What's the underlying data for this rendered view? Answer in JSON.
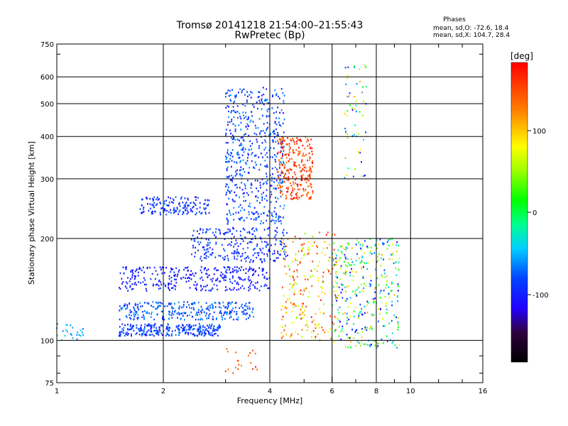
{
  "header": {
    "title": "Tromsø 20141218 21:54:00–21:55:43",
    "subtitle": "RwPretec (Bp)"
  },
  "phases_box": {
    "heading": "Phases",
    "line_o": "mean, sd,O: -72.6, 18.4",
    "line_x": "mean, sd,X: 104.7, 28.4"
  },
  "colorbar": {
    "unit": "[deg]",
    "ticks": [
      "100",
      "0",
      "-100"
    ]
  },
  "chart_data": {
    "type": "scatter",
    "xlabel": "Frequency [MHz]",
    "ylabel": "Stationary phase Virtual Height [km]",
    "xscale": "log",
    "yscale": "log",
    "xlim": [
      1,
      16
    ],
    "ylim": [
      75,
      750
    ],
    "xticks": [
      1,
      2,
      4,
      6,
      8,
      10,
      16
    ],
    "xtick_labels": [
      "1",
      "2",
      "4",
      "6",
      "8",
      "10",
      "16"
    ],
    "yticks": [
      75,
      100,
      200,
      300,
      400,
      500,
      600,
      750
    ],
    "ytick_labels": [
      "75",
      "100",
      "200",
      "300",
      "400",
      "500",
      "600",
      "750"
    ],
    "grid": true,
    "colormap": "rainbow",
    "color_range_deg": [
      -180,
      180
    ],
    "clusters": [
      {
        "f": [
          1.5,
          2.9
        ],
        "h": [
          103,
          112
        ],
        "phase": [
          -110,
          -60
        ],
        "n": 280
      },
      {
        "f": [
          1.5,
          3.6
        ],
        "h": [
          115,
          130
        ],
        "phase": [
          -100,
          -50
        ],
        "n": 300
      },
      {
        "f": [
          1.5,
          4.0
        ],
        "h": [
          140,
          165
        ],
        "phase": [
          -120,
          -80
        ],
        "n": 320
      },
      {
        "f": [
          2.4,
          4.5
        ],
        "h": [
          170,
          215
        ],
        "phase": [
          -110,
          -70
        ],
        "n": 250
      },
      {
        "f": [
          1.7,
          2.7
        ],
        "h": [
          235,
          265
        ],
        "phase": [
          -110,
          -70
        ],
        "n": 150
      },
      {
        "f": [
          3.0,
          4.4
        ],
        "h": [
          220,
          560
        ],
        "phase": [
          -110,
          -55
        ],
        "n": 550
      },
      {
        "f": [
          4.2,
          5.3
        ],
        "h": [
          260,
          400
        ],
        "phase": [
          120,
          180
        ],
        "n": 260
      },
      {
        "f": [
          4.3,
          6.2
        ],
        "h": [
          100,
          210
        ],
        "phase": [
          40,
          180
        ],
        "n": 220
      },
      {
        "f": [
          6.0,
          9.3
        ],
        "h": [
          95,
          200
        ],
        "phase": [
          -130,
          110
        ],
        "n": 350
      },
      {
        "f": [
          1.0,
          1.2
        ],
        "h": [
          100,
          112
        ],
        "phase": [
          -70,
          -40
        ],
        "n": 25
      },
      {
        "f": [
          6.5,
          7.5
        ],
        "h": [
          300,
          650
        ],
        "phase": [
          -120,
          120
        ],
        "n": 60
      },
      {
        "f": [
          3.0,
          3.7
        ],
        "h": [
          80,
          95
        ],
        "phase": [
          120,
          170
        ],
        "n": 20
      }
    ]
  }
}
